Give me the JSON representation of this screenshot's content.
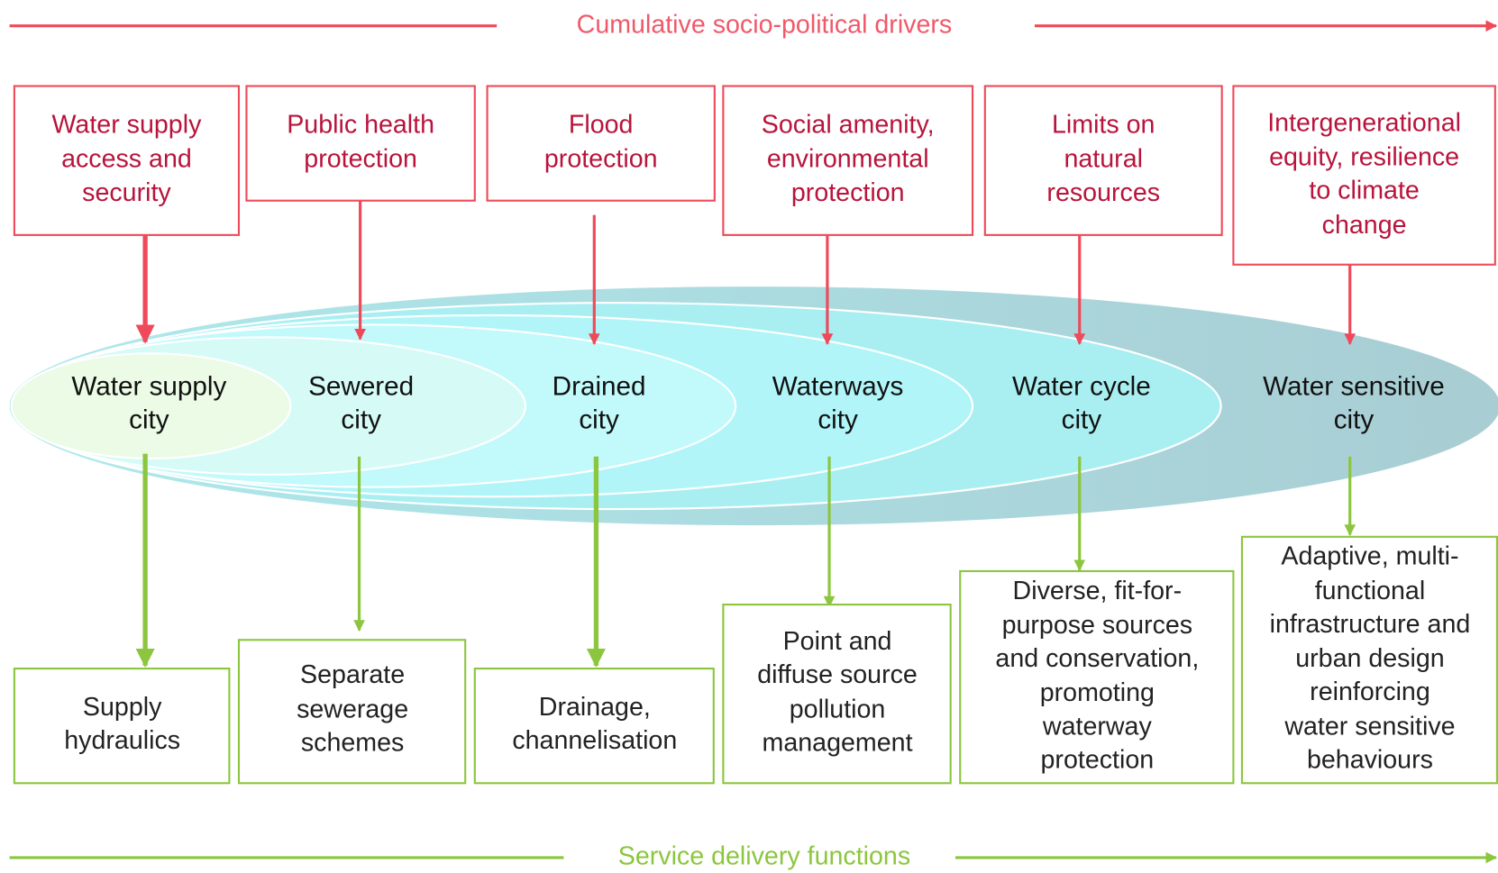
{
  "header": {
    "label": "Cumulative socio-political drivers"
  },
  "drivers": [
    {
      "lines": [
        "Water supply",
        "access and",
        "security"
      ]
    },
    {
      "lines": [
        "Public health",
        "protection"
      ]
    },
    {
      "lines": [
        "Flood",
        "protection"
      ]
    },
    {
      "lines": [
        "Social amenity,",
        "environmental",
        "protection"
      ]
    },
    {
      "lines": [
        "Limits on",
        "natural",
        "resources"
      ]
    },
    {
      "lines": [
        "Intergenerational",
        "equity, resilience",
        "to climate",
        "change"
      ]
    }
  ],
  "cities": [
    {
      "lines": [
        "Water supply",
        "city"
      ]
    },
    {
      "lines": [
        "Sewered",
        "city"
      ]
    },
    {
      "lines": [
        "Drained",
        "city"
      ]
    },
    {
      "lines": [
        "Waterways",
        "city"
      ]
    },
    {
      "lines": [
        "Water cycle",
        "city"
      ]
    },
    {
      "lines": [
        "Water sensitive",
        "city"
      ]
    }
  ],
  "functions": [
    {
      "lines": [
        "Supply",
        "hydraulics"
      ]
    },
    {
      "lines": [
        "Separate",
        "sewerage",
        "schemes"
      ]
    },
    {
      "lines": [
        "Drainage,",
        "channelisation"
      ]
    },
    {
      "lines": [
        "Point and",
        "diffuse source",
        "pollution",
        "management"
      ]
    },
    {
      "lines": [
        "Diverse, fit-for-",
        "purpose sources",
        "and conservation,",
        "promoting",
        "waterway",
        "protection"
      ]
    },
    {
      "lines": [
        "Adaptive, multi-",
        "functional",
        "infrastructure and",
        "urban design",
        "reinforcing",
        "water sensitive",
        "behaviours"
      ]
    }
  ],
  "footer": {
    "label": "Service delivery functions"
  }
}
